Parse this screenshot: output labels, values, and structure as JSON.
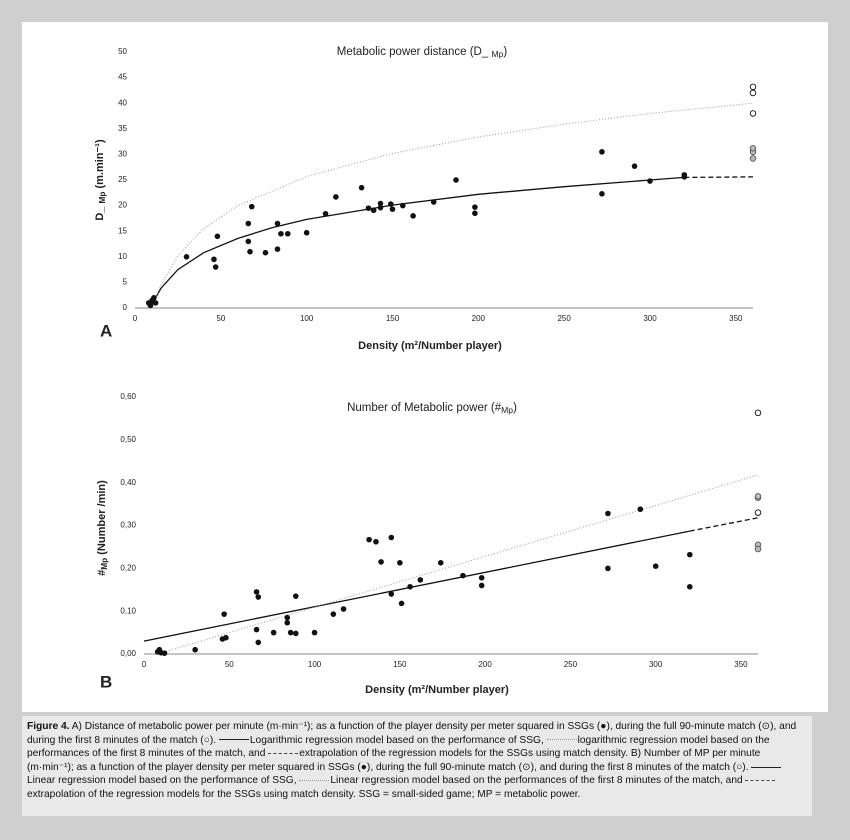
{
  "chart_data": [
    {
      "type": "scatter",
      "panel_label": "A",
      "title": "Metabolic power distance (D_ ",
      "title_sub": "Mp",
      "title_end": ")",
      "y_label": "D_ ",
      "y_label_sub": "Mp",
      "y_label_end": " (m.min⁻¹)",
      "x_label": "Density (m²/Number player)",
      "xlim": [
        0,
        360
      ],
      "xticks": [
        0,
        50,
        100,
        150,
        200,
        250,
        300,
        350
      ],
      "ylim": [
        0,
        50
      ],
      "yticks": [
        0,
        5,
        10,
        15,
        20,
        25,
        30,
        35,
        40,
        45,
        50
      ],
      "series": [
        {
          "marker": "filled",
          "color": "#111111",
          "x": [
            8,
            9,
            10,
            11,
            12,
            30,
            46,
            47,
            48,
            66,
            66,
            67,
            68,
            76,
            83,
            83,
            85,
            89,
            100,
            111,
            117,
            132,
            136,
            139,
            143,
            143,
            149,
            150,
            156,
            162,
            174,
            187,
            198,
            198,
            272,
            272,
            291,
            300,
            320,
            320
          ],
          "values": [
            1,
            0.5,
            1.5,
            2,
            1,
            10,
            9.5,
            8,
            14,
            16.5,
            13,
            11,
            19.8,
            10.8,
            16.5,
            11.5,
            14.5,
            14.5,
            14.7,
            18.4,
            21.7,
            23.5,
            19.5,
            19.1,
            20.4,
            19.6,
            20.3,
            19.3,
            20,
            18,
            20.7,
            25,
            18.5,
            19.7,
            30.5,
            22.3,
            27.7,
            24.8,
            26,
            25.6
          ]
        },
        {
          "marker": "dotted",
          "color": "#555555",
          "x": [
            360,
            360,
            360
          ],
          "values": [
            29.2,
            30.5,
            31.2
          ]
        },
        {
          "marker": "open",
          "color": "#111111",
          "x": [
            360,
            360,
            360
          ],
          "values": [
            38,
            42,
            43.2
          ]
        }
      ],
      "lines": [
        {
          "style": "solid",
          "color": "#111111",
          "x": [
            9,
            15,
            25,
            40,
            60,
            80,
            100,
            150,
            200,
            250,
            300,
            320
          ],
          "values": [
            0.2,
            3.8,
            7.5,
            10.8,
            13.6,
            15.7,
            17.3,
            20.1,
            22.2,
            23.7,
            25.0,
            25.5
          ]
        },
        {
          "style": "dashed",
          "color": "#111111",
          "x": [
            320,
            360
          ],
          "values": [
            25.5,
            25.6
          ]
        },
        {
          "style": "dotted",
          "color": "#999999",
          "x": [
            10,
            15,
            25,
            40,
            60,
            100,
            150,
            200,
            250,
            300,
            360
          ],
          "values": [
            0,
            4.5,
            10.2,
            15.5,
            20,
            25.7,
            30.2,
            33.4,
            35.9,
            38,
            40
          ]
        }
      ]
    },
    {
      "type": "scatter",
      "panel_label": "B",
      "title": "Number of Metabolic power (#",
      "title_sub": "Mp",
      "title_end": ")",
      "y_label": "#",
      "y_label_sub": "Mp",
      "y_label_end": " (Number /min)",
      "x_label": "Density (m²/Number player)",
      "xlim": [
        0,
        360
      ],
      "xticks": [
        0,
        50,
        100,
        150,
        200,
        250,
        300,
        350
      ],
      "ylim": [
        0,
        0.6
      ],
      "yticks": [
        {
          "value": 0,
          "label": "0,00"
        },
        {
          "value": 0.1,
          "label": "0,10"
        },
        {
          "value": 0.2,
          "label": "0,20"
        },
        {
          "value": 0.3,
          "label": "0,30"
        },
        {
          "value": 0.4,
          "label": "0,40"
        },
        {
          "value": 0.5,
          "label": "0,50"
        },
        {
          "value": 0.6,
          "label": "0,60"
        }
      ],
      "series": [
        {
          "marker": "filled",
          "color": "#111111",
          "x": [
            8,
            9,
            10,
            12,
            30,
            46,
            47,
            48,
            66,
            66,
            67,
            67,
            76,
            84,
            84,
            86,
            89,
            89,
            100,
            111,
            117,
            132,
            136,
            139,
            145,
            145,
            150,
            151,
            156,
            162,
            174,
            187,
            198,
            198,
            272,
            272,
            291,
            300,
            320,
            320
          ],
          "values": [
            0.005,
            0.01,
            0.003,
            0.002,
            0.01,
            0.035,
            0.093,
            0.038,
            0.057,
            0.145,
            0.133,
            0.027,
            0.05,
            0.085,
            0.073,
            0.05,
            0.048,
            0.135,
            0.05,
            0.093,
            0.105,
            0.267,
            0.262,
            0.215,
            0.272,
            0.14,
            0.213,
            0.118,
            0.157,
            0.173,
            0.213,
            0.183,
            0.16,
            0.178,
            0.328,
            0.2,
            0.338,
            0.205,
            0.232,
            0.157
          ]
        },
        {
          "marker": "dotted",
          "color": "#555555",
          "x": [
            360,
            360,
            360,
            360
          ],
          "values": [
            0.365,
            0.368,
            0.255,
            0.245
          ]
        },
        {
          "marker": "open",
          "color": "#111111",
          "x": [
            360,
            360
          ],
          "values": [
            0.563,
            0.33
          ]
        }
      ],
      "lines": [
        {
          "style": "solid",
          "color": "#111111",
          "x": [
            0,
            320
          ],
          "values": [
            0.03,
            0.287
          ]
        },
        {
          "style": "dashed",
          "color": "#111111",
          "x": [
            320,
            360
          ],
          "values": [
            0.287,
            0.318
          ]
        },
        {
          "style": "dotted",
          "color": "#999999",
          "x": [
            8,
            360
          ],
          "values": [
            0,
            0.418
          ]
        }
      ]
    }
  ],
  "caption": {
    "label": "Figure 4.",
    "segments": [
      " A) Distance of metabolic power per minute (m·min⁻¹); as a function of the player density per meter squared in SSGs (●), during the full 90-minute match (⊙), and during the first 8 minutes of the match (○). ",
      "Logarithmic regression model based on the performance of SSG, ",
      "logarithmic regression model based on the performances of the first 8 minutes of the match, and ",
      "extrapolation of the regression models for the SSGs using match density. B) Number of MP per minute (m·min⁻¹); as a function of the player density per meter squared in SSGs (●), during the full 90-minute match (⊙), and during the first 8 minutes of the match (○). ",
      "Linear regression model based on the performance of SSG, ",
      "Linear regression model based on the performances of the first 8 minutes of the match, and ",
      "extrapolation of the regression models for the SSGs using match density. SSG = small-sided game; MP = metabolic power."
    ]
  }
}
